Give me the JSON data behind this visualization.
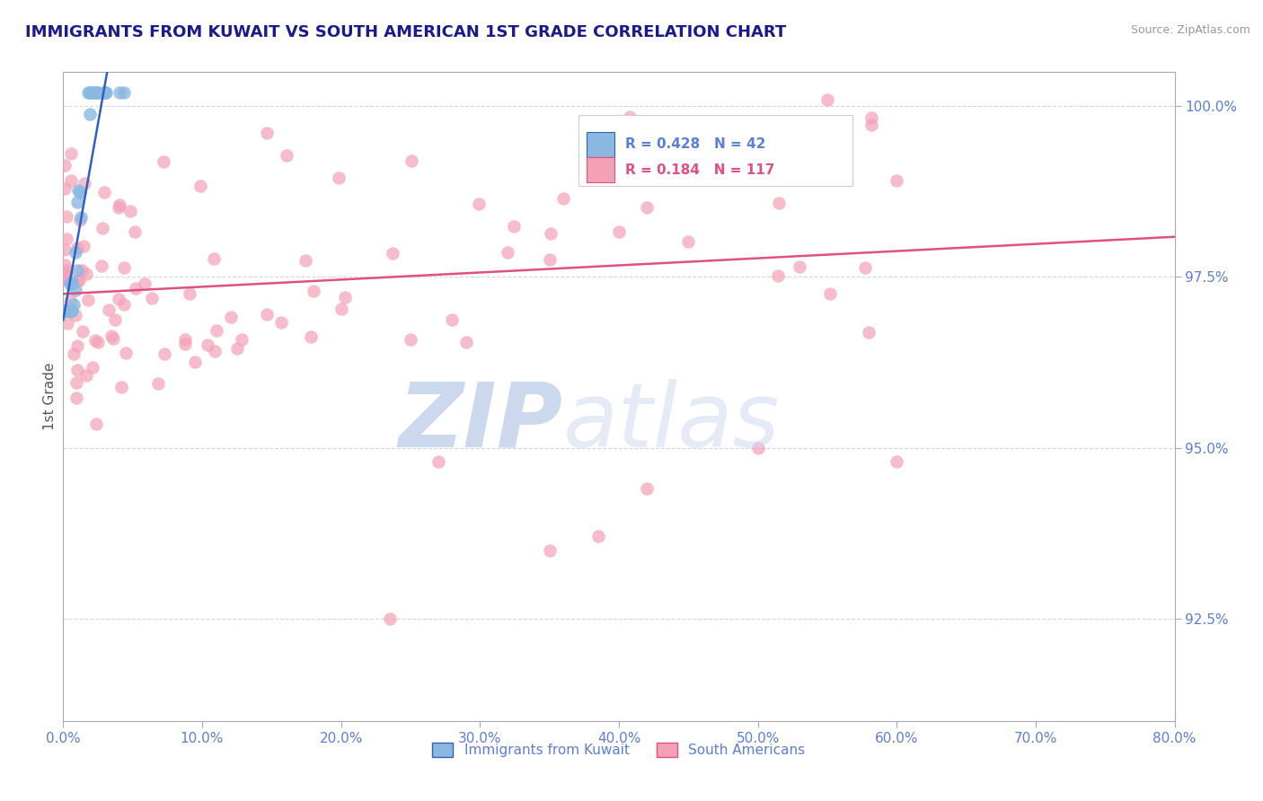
{
  "title": "IMMIGRANTS FROM KUWAIT VS SOUTH AMERICAN 1ST GRADE CORRELATION CHART",
  "source": "Source: ZipAtlas.com",
  "ylabel": "1st Grade",
  "xlim": [
    0.0,
    0.8
  ],
  "ylim": [
    0.91,
    1.005
  ],
  "yticks": [
    0.925,
    0.95,
    0.975,
    1.0
  ],
  "ytick_labels": [
    "92.5%",
    "95.0%",
    "97.5%",
    "100.0%"
  ],
  "xticks": [
    0.0,
    0.1,
    0.2,
    0.3,
    0.4,
    0.5,
    0.6,
    0.7,
    0.8
  ],
  "xtick_labels": [
    "0.0%",
    "10.0%",
    "20.0%",
    "30.0%",
    "40.0%",
    "50.0%",
    "60.0%",
    "70.0%",
    "80.0%"
  ],
  "kuwait_R": 0.428,
  "kuwait_N": 42,
  "south_R": 0.184,
  "south_N": 117,
  "kuwait_color": "#8ab8e0",
  "south_color": "#f4a0b5",
  "kuwait_line_color": "#3060c0",
  "south_line_color": "#e05080",
  "legend_label_kuwait": "Immigrants from Kuwait",
  "legend_label_south": "South Americans",
  "title_color": "#1a1a8c",
  "axis_color": "#5b7fd4",
  "tick_color": "#aaaaaa",
  "grid_color": "#cccccc",
  "background_color": "#ffffff",
  "watermark_zip_color": "#ccd8ee",
  "watermark_atlas_color": "#ccd8ee"
}
